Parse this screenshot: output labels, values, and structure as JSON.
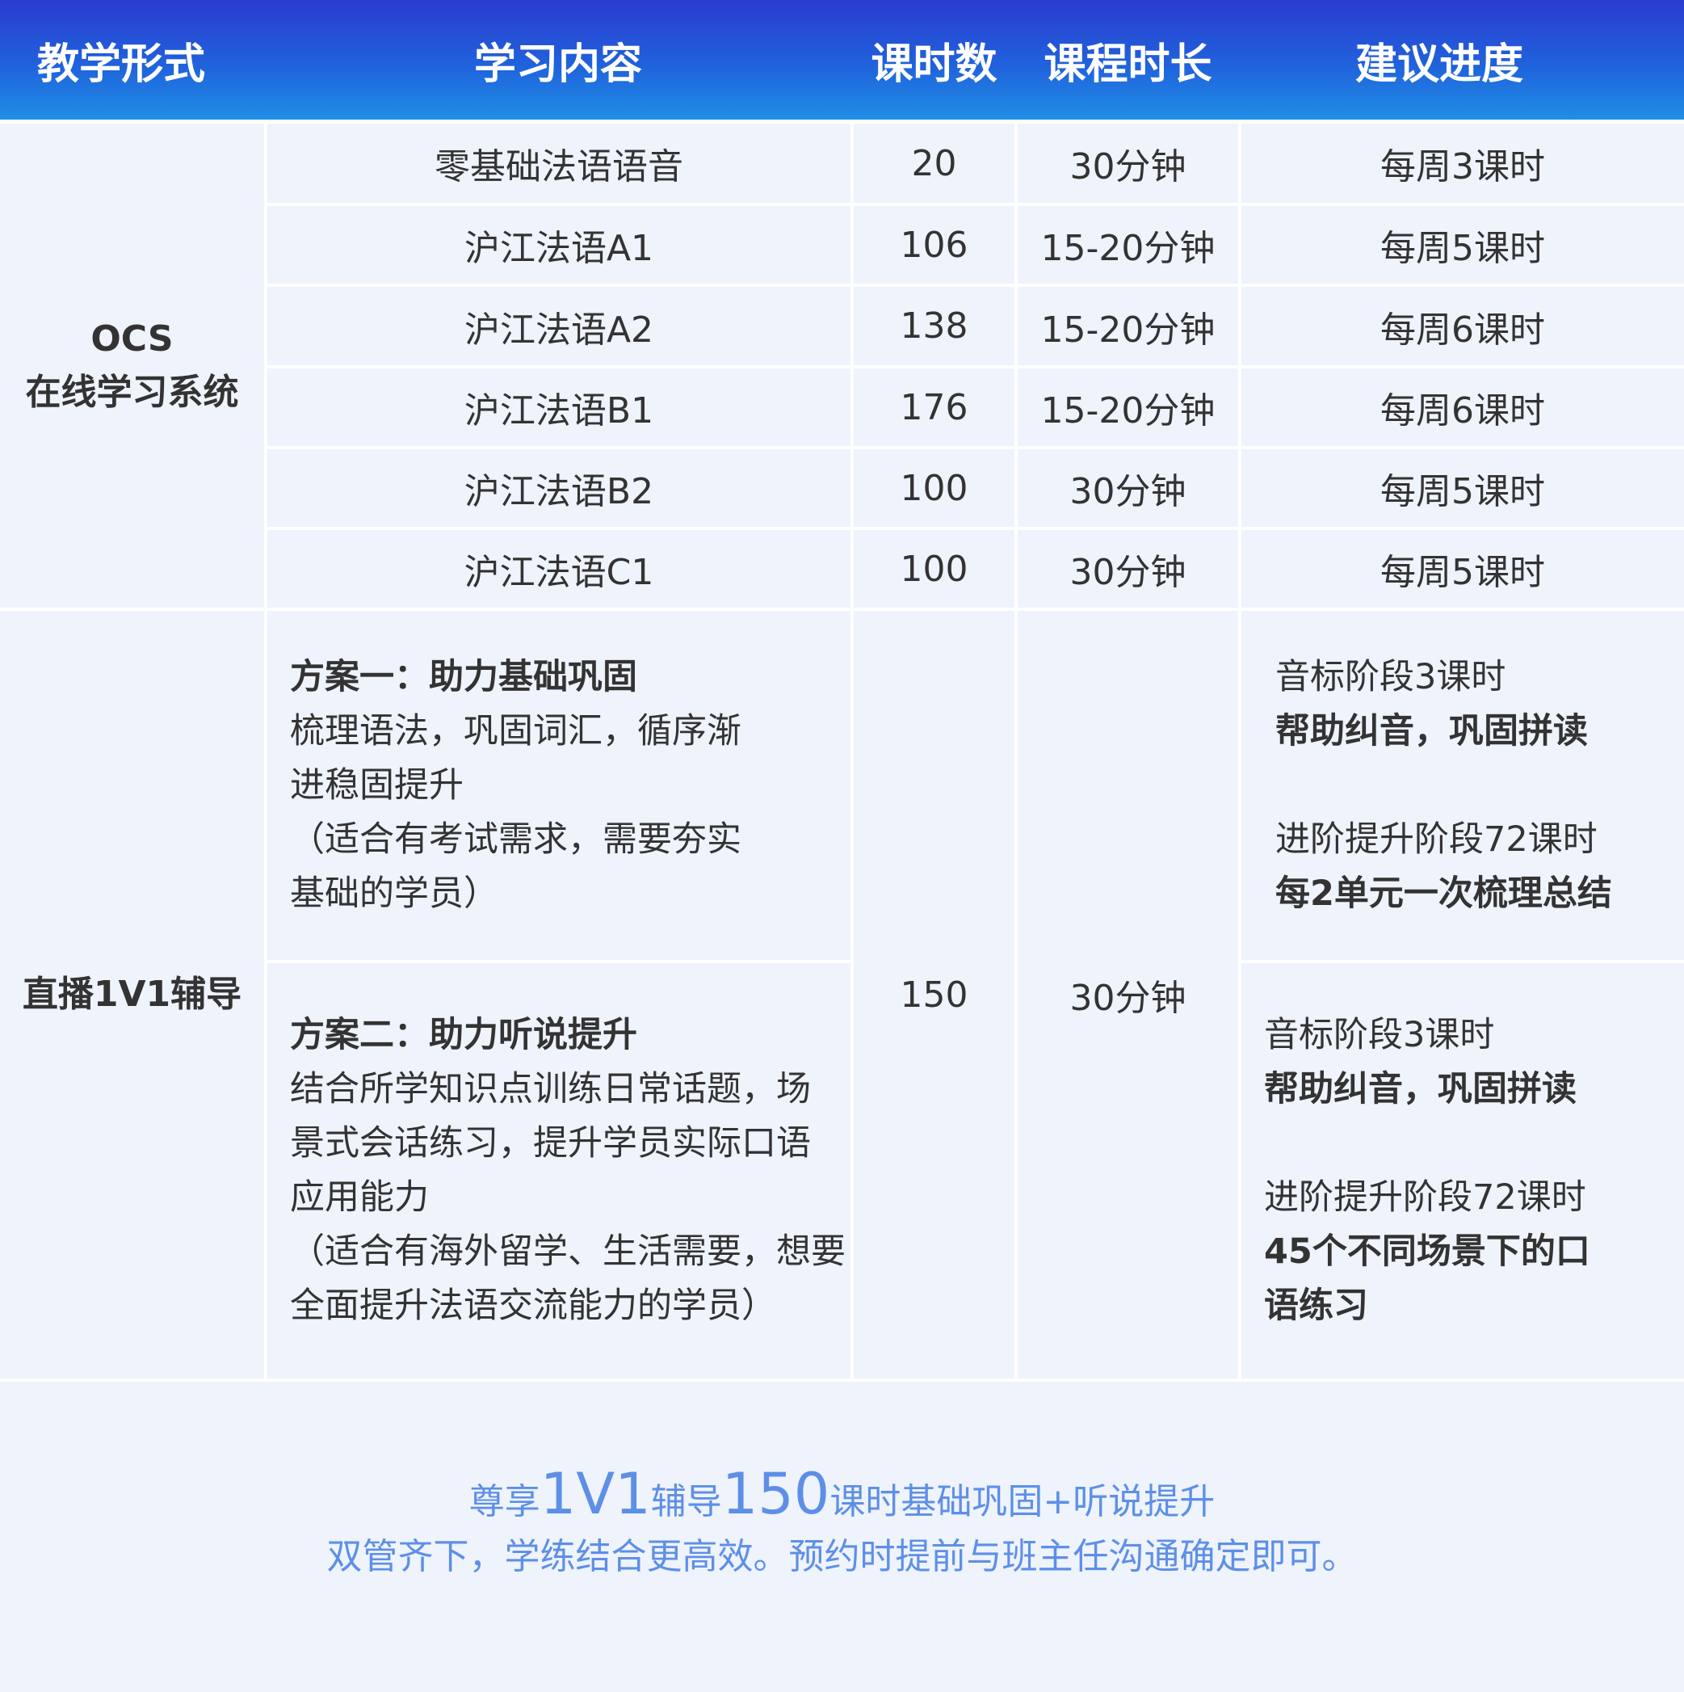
{
  "header": [
    "教学形式",
    "学习内容",
    "课时数",
    "课程时长",
    "建议进度"
  ],
  "ocs": {
    "label_line1": "OCS",
    "label_line2": "在线学习系统",
    "rows": [
      {
        "content": "零基础法语语音",
        "hours": "20",
        "duration": "30分钟",
        "schedule": "每周3课时"
      },
      {
        "content": "沪江法语A1",
        "hours": "106",
        "duration": "15-20分钟",
        "schedule": "每周5课时"
      },
      {
        "content": "沪江法语A2",
        "hours": "138",
        "duration": "15-20分钟",
        "schedule": "每周6课时"
      },
      {
        "content": "沪江法语B1",
        "hours": "176",
        "duration": "15-20分钟",
        "schedule": "每周6课时"
      },
      {
        "content": "沪江法语B2",
        "hours": "100",
        "duration": "30分钟",
        "schedule": "每周5课时"
      },
      {
        "content": "沪江法语C1",
        "hours": "100",
        "duration": "30分钟",
        "schedule": "每周5课时"
      }
    ]
  },
  "live": {
    "label": "直播1V1辅导",
    "hours": "150",
    "duration": "30分钟",
    "plans": [
      {
        "title": "方案一：助力基础巩固",
        "lines": [
          "梳理语法，巩固词汇，循序渐",
          "进稳固提升",
          "（适合有考试需求，需要夯实",
          "基础的学员）"
        ],
        "schedule": {
          "stage1": "音标阶段3课时",
          "stage1_desc": "帮助纠音，巩固拼读",
          "stage2": "进阶提升阶段72课时",
          "stage2_desc": [
            "每2单元一次梳理总结"
          ]
        }
      },
      {
        "title": "方案二：助力听说提升",
        "lines": [
          "结合所学知识点训练日常话题，场",
          "景式会话练习，提升学员实际口语",
          "应用能力",
          "（适合有海外留学、生活需要，想要",
          "全面提升法语交流能力的学员）"
        ],
        "schedule": {
          "stage1": "音标阶段3课时",
          "stage1_desc": "帮助纠音，巩固拼读",
          "stage2": "进阶提升阶段72课时",
          "stage2_desc": [
            "45个不同场景下的口",
            "语练习"
          ]
        }
      }
    ]
  },
  "footer": {
    "line1": {
      "a": "尊享",
      "b": "1V1",
      "c": "辅导",
      "d": "150",
      "e": "课时基础巩固+听说提升"
    },
    "line2": "双管齐下，学练结合更高效。预约时提前与班主任沟通确定即可。"
  },
  "colors": {
    "header_top": "#2a3cd0",
    "header_bottom": "#1f8fe6",
    "cell_bg": "#eef3fc",
    "footer_text": "#5e8fe6"
  }
}
